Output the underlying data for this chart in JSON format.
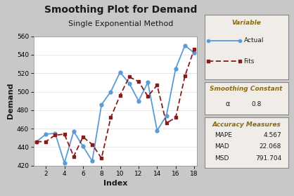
{
  "title": "Smoothing Plot for Demand",
  "subtitle": "Single Exponential Method",
  "xlabel": "Index",
  "ylabel": "Demand",
  "actual_x": [
    1,
    2,
    3,
    4,
    5,
    6,
    7,
    8,
    9,
    10,
    11,
    12,
    13,
    14,
    15,
    16,
    17,
    18
  ],
  "actual_y": [
    446,
    454,
    455,
    423,
    457,
    441,
    425,
    486,
    500,
    521,
    509,
    490,
    510,
    458,
    474,
    525,
    550,
    542
  ],
  "fits_x": [
    1,
    2,
    3,
    4,
    5,
    6,
    7,
    8,
    9,
    10,
    11,
    12,
    13,
    14,
    15,
    16,
    17,
    18
  ],
  "fits_y": [
    446,
    446,
    453,
    454,
    430,
    451,
    443,
    428,
    472,
    496,
    516,
    511,
    495,
    507,
    466,
    472,
    517,
    546
  ],
  "actual_color": "#5b9bd5",
  "fits_color": "#8b1a1a",
  "bg_color": "#c8c8c8",
  "plot_bg": "#ffffff",
  "ylim": [
    420,
    560
  ],
  "xlim": [
    1,
    18
  ],
  "yticks": [
    420,
    440,
    460,
    480,
    500,
    520,
    540,
    560
  ],
  "xticks": [
    2,
    4,
    6,
    8,
    10,
    12,
    14,
    16,
    18
  ],
  "smoothing_alpha": "0.8",
  "mape": "4.567",
  "mad": "22.068",
  "msd": "791.704",
  "legend_variable": "Variable",
  "legend_actual": "Actual",
  "legend_fits": "Fits",
  "legend_smooth_title": "Smoothing Constant",
  "legend_acc_title": "Accuracy Measures",
  "title_color": "#1a1a1a",
  "panel_bg": "#f0ede8",
  "panel_border": "#888888",
  "label_color": "#8b6914"
}
